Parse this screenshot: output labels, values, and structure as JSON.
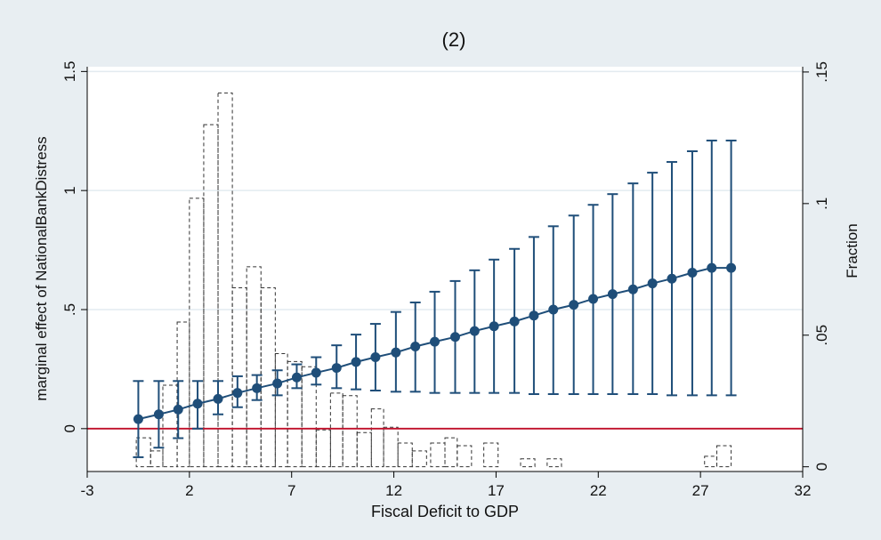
{
  "chart_data": {
    "type": "line",
    "title": "(2)",
    "xlabel": "Fiscal Deficit to GDP",
    "ylabel": "marginal effect of NationalBankDistress",
    "y2label": "Fraction",
    "xlim": [
      -3,
      32
    ],
    "ylim": [
      -0.18,
      1.52
    ],
    "y2lim": [
      -0.0018,
      0.152
    ],
    "xticks": [
      -3,
      2,
      7,
      12,
      17,
      22,
      27,
      32
    ],
    "xtick_labels": [
      "-3",
      "2",
      "7",
      "12",
      "17",
      "22",
      "27",
      "32"
    ],
    "yticks": [
      0,
      0.5,
      1,
      1.5
    ],
    "ytick_labels": [
      "0",
      ".5",
      "1",
      "1.5"
    ],
    "y2ticks": [
      0,
      0.05,
      0.1,
      0.15
    ],
    "y2tick_labels": [
      "0",
      ".05",
      ".1",
      ".15"
    ],
    "reference_line": {
      "y": 0,
      "color": "#c0102a"
    },
    "grid": "horizontal",
    "series": [
      {
        "kind": "point_estimate_with_ci",
        "color": "#1f4e79",
        "x": [
          -0.5,
          0.5,
          1.45,
          2.4,
          3.4,
          4.35,
          5.3,
          6.3,
          7.25,
          8.2,
          9.2,
          10.15,
          11.1,
          12.1,
          13.05,
          14.0,
          15.0,
          15.95,
          16.9,
          17.9,
          18.85,
          19.8,
          20.8,
          21.75,
          22.7,
          23.7,
          24.65,
          25.6,
          26.6,
          27.55,
          28.5
        ],
        "estimate": [
          0.04,
          0.06,
          0.08,
          0.105,
          0.125,
          0.15,
          0.17,
          0.19,
          0.215,
          0.235,
          0.255,
          0.28,
          0.3,
          0.32,
          0.345,
          0.365,
          0.385,
          0.41,
          0.43,
          0.45,
          0.475,
          0.5,
          0.52,
          0.545,
          0.565,
          0.585,
          0.61,
          0.63,
          0.655,
          0.675,
          0.675
        ],
        "lower": [
          -0.12,
          -0.08,
          -0.04,
          0.0,
          0.06,
          0.09,
          0.12,
          0.14,
          0.17,
          0.185,
          0.17,
          0.165,
          0.16,
          0.155,
          0.155,
          0.15,
          0.15,
          0.15,
          0.15,
          0.15,
          0.145,
          0.145,
          0.145,
          0.145,
          0.145,
          0.145,
          0.145,
          0.14,
          0.14,
          0.14,
          0.14
        ],
        "upper": [
          0.2,
          0.2,
          0.2,
          0.2,
          0.2,
          0.22,
          0.225,
          0.245,
          0.27,
          0.3,
          0.35,
          0.395,
          0.44,
          0.49,
          0.53,
          0.575,
          0.62,
          0.665,
          0.71,
          0.755,
          0.805,
          0.85,
          0.895,
          0.94,
          0.985,
          1.03,
          1.075,
          1.12,
          1.165,
          1.21,
          1.21
        ]
      }
    ],
    "histogram": {
      "axis": "y2",
      "style": "dashed-outline",
      "bins": [
        {
          "x0": -0.6,
          "x1": 0.1,
          "fraction": 0.011
        },
        {
          "x0": 0.1,
          "x1": 0.7,
          "fraction": 0.006
        },
        {
          "x0": 0.7,
          "x1": 1.4,
          "fraction": 0.031
        },
        {
          "x0": 1.4,
          "x1": 2.0,
          "fraction": 0.055
        },
        {
          "x0": 2.0,
          "x1": 2.7,
          "fraction": 0.102
        },
        {
          "x0": 2.7,
          "x1": 3.4,
          "fraction": 0.13
        },
        {
          "x0": 3.4,
          "x1": 4.1,
          "fraction": 0.142
        },
        {
          "x0": 4.1,
          "x1": 4.8,
          "fraction": 0.068
        },
        {
          "x0": 4.8,
          "x1": 5.5,
          "fraction": 0.076
        },
        {
          "x0": 5.5,
          "x1": 6.2,
          "fraction": 0.068
        },
        {
          "x0": 6.2,
          "x1": 6.8,
          "fraction": 0.043
        },
        {
          "x0": 6.8,
          "x1": 7.5,
          "fraction": 0.04
        },
        {
          "x0": 7.5,
          "x1": 8.2,
          "fraction": 0.038
        },
        {
          "x0": 8.2,
          "x1": 8.9,
          "fraction": 0.014
        },
        {
          "x0": 8.9,
          "x1": 9.5,
          "fraction": 0.028
        },
        {
          "x0": 9.5,
          "x1": 10.2,
          "fraction": 0.027
        },
        {
          "x0": 10.2,
          "x1": 10.9,
          "fraction": 0.013
        },
        {
          "x0": 10.9,
          "x1": 11.5,
          "fraction": 0.022
        },
        {
          "x0": 11.5,
          "x1": 12.2,
          "fraction": 0.015
        },
        {
          "x0": 12.2,
          "x1": 12.9,
          "fraction": 0.009
        },
        {
          "x0": 12.9,
          "x1": 13.6,
          "fraction": 0.006
        },
        {
          "x0": 13.8,
          "x1": 14.5,
          "fraction": 0.009
        },
        {
          "x0": 14.5,
          "x1": 15.1,
          "fraction": 0.011
        },
        {
          "x0": 15.1,
          "x1": 15.8,
          "fraction": 0.008
        },
        {
          "x0": 16.4,
          "x1": 17.1,
          "fraction": 0.009
        },
        {
          "x0": 18.2,
          "x1": 18.9,
          "fraction": 0.003
        },
        {
          "x0": 19.5,
          "x1": 20.2,
          "fraction": 0.003
        },
        {
          "x0": 27.2,
          "x1": 27.8,
          "fraction": 0.004
        },
        {
          "x0": 27.8,
          "x1": 28.5,
          "fraction": 0.008
        }
      ]
    }
  }
}
